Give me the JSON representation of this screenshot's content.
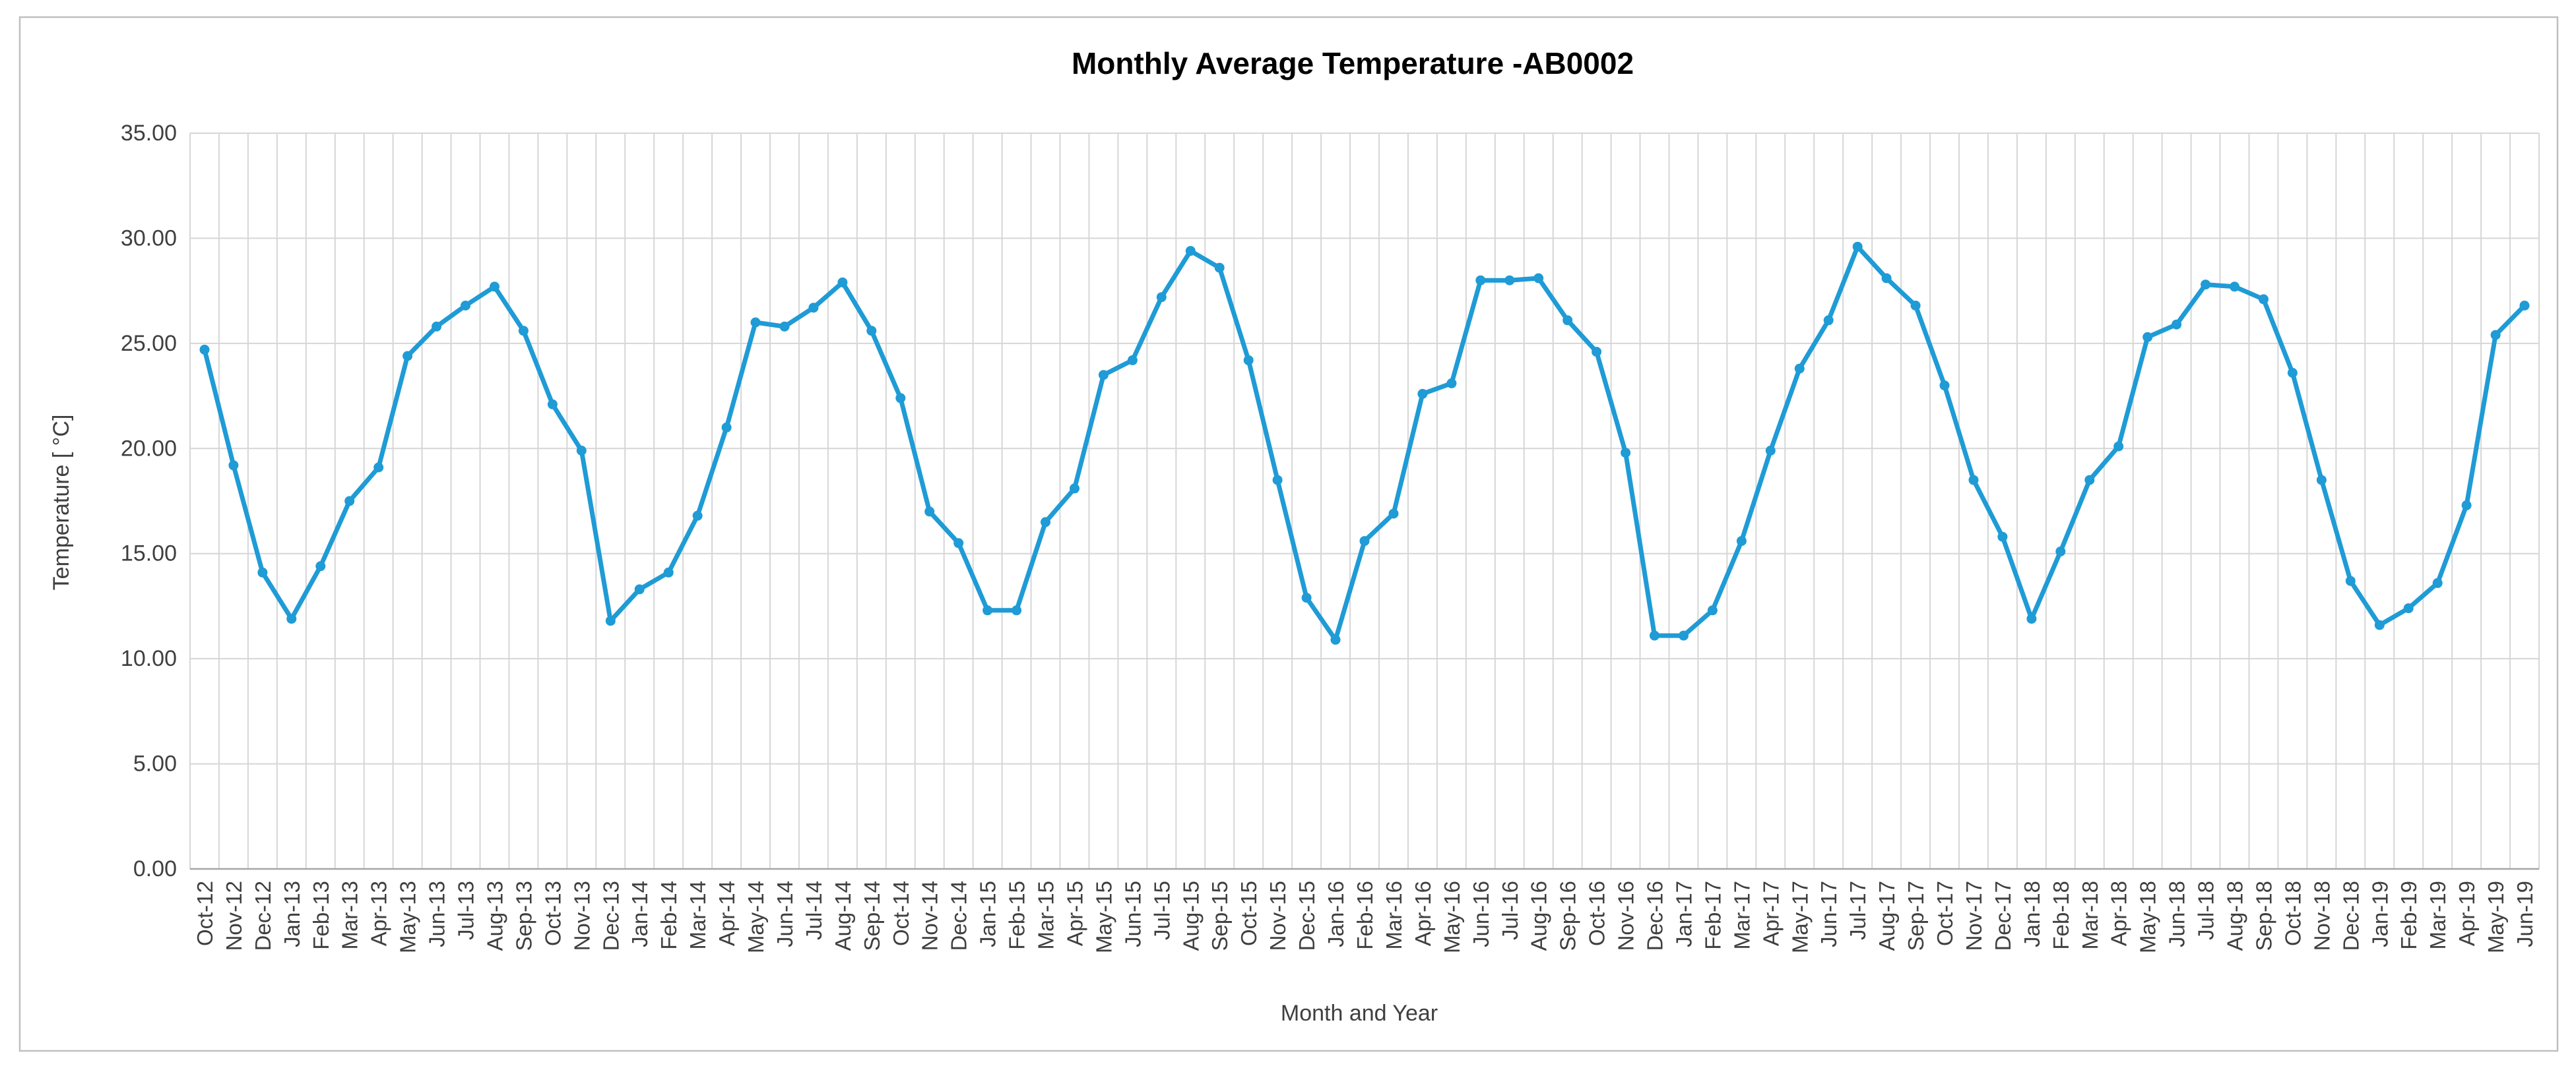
{
  "chart_data": {
    "type": "line",
    "title": "Monthly Average Temperature -AB0002",
    "xlabel": "Month and Year",
    "ylabel": "Temperature [ °C]",
    "ylim": [
      0,
      35
    ],
    "ytick_step": 5,
    "yticks": [
      "0.00",
      "5.00",
      "10.00",
      "15.00",
      "20.00",
      "25.00",
      "30.00",
      "35.00"
    ],
    "grid": true,
    "legend": "none",
    "line_color": "#1f9bd6",
    "gridline_color": "#d6d6d6",
    "axis_line_color": "#a6a6a6",
    "tick_label_color": "#3f3f3f",
    "border_color": "#bfbfbf",
    "categories": [
      "Oct-12",
      "Nov-12",
      "Dec-12",
      "Jan-13",
      "Feb-13",
      "Mar-13",
      "Apr-13",
      "May-13",
      "Jun-13",
      "Jul-13",
      "Aug-13",
      "Sep-13",
      "Oct-13",
      "Nov-13",
      "Dec-13",
      "Jan-14",
      "Feb-14",
      "Mar-14",
      "Apr-14",
      "May-14",
      "Jun-14",
      "Jul-14",
      "Aug-14",
      "Sep-14",
      "Oct-14",
      "Nov-14",
      "Dec-14",
      "Jan-15",
      "Feb-15",
      "Mar-15",
      "Apr-15",
      "May-15",
      "Jun-15",
      "Jul-15",
      "Aug-15",
      "Sep-15",
      "Oct-15",
      "Nov-15",
      "Dec-15",
      "Jan-16",
      "Feb-16",
      "Mar-16",
      "Apr-16",
      "May-16",
      "Jun-16",
      "Jul-16",
      "Aug-16",
      "Sep-16",
      "Oct-16",
      "Nov-16",
      "Dec-16",
      "Jan-17",
      "Feb-17",
      "Mar-17",
      "Apr-17",
      "May-17",
      "Jun-17",
      "Jul-17",
      "Aug-17",
      "Sep-17",
      "Oct-17",
      "Nov-17",
      "Dec-17",
      "Jan-18",
      "Feb-18",
      "Mar-18",
      "Apr-18",
      "May-18",
      "Jun-18",
      "Jul-18",
      "Aug-18",
      "Sep-18",
      "Oct-18",
      "Nov-18",
      "Dec-18",
      "Jan-19",
      "Feb-19",
      "Mar-19",
      "Apr-19",
      "May-19",
      "Jun-19"
    ],
    "values": [
      24.7,
      19.2,
      14.1,
      11.9,
      14.4,
      17.5,
      19.1,
      24.4,
      25.8,
      26.8,
      27.7,
      25.6,
      22.1,
      19.9,
      11.8,
      13.3,
      14.1,
      16.8,
      21.0,
      26.0,
      25.8,
      26.7,
      27.9,
      25.6,
      22.4,
      17.0,
      15.5,
      12.3,
      12.3,
      16.5,
      18.1,
      23.5,
      24.2,
      27.2,
      29.4,
      28.6,
      24.2,
      18.5,
      12.9,
      10.9,
      15.6,
      16.9,
      22.6,
      23.1,
      28.0,
      28.0,
      28.1,
      26.1,
      24.6,
      19.8,
      11.1,
      11.1,
      12.3,
      15.6,
      19.9,
      23.8,
      26.1,
      29.6,
      28.1,
      26.8,
      23.0,
      18.5,
      15.8,
      11.9,
      15.1,
      18.5,
      20.1,
      25.3,
      25.9,
      27.8,
      27.7,
      27.1,
      23.6,
      18.5,
      13.7,
      11.6,
      12.4,
      13.6,
      17.3,
      25.4,
      26.8
    ]
  }
}
